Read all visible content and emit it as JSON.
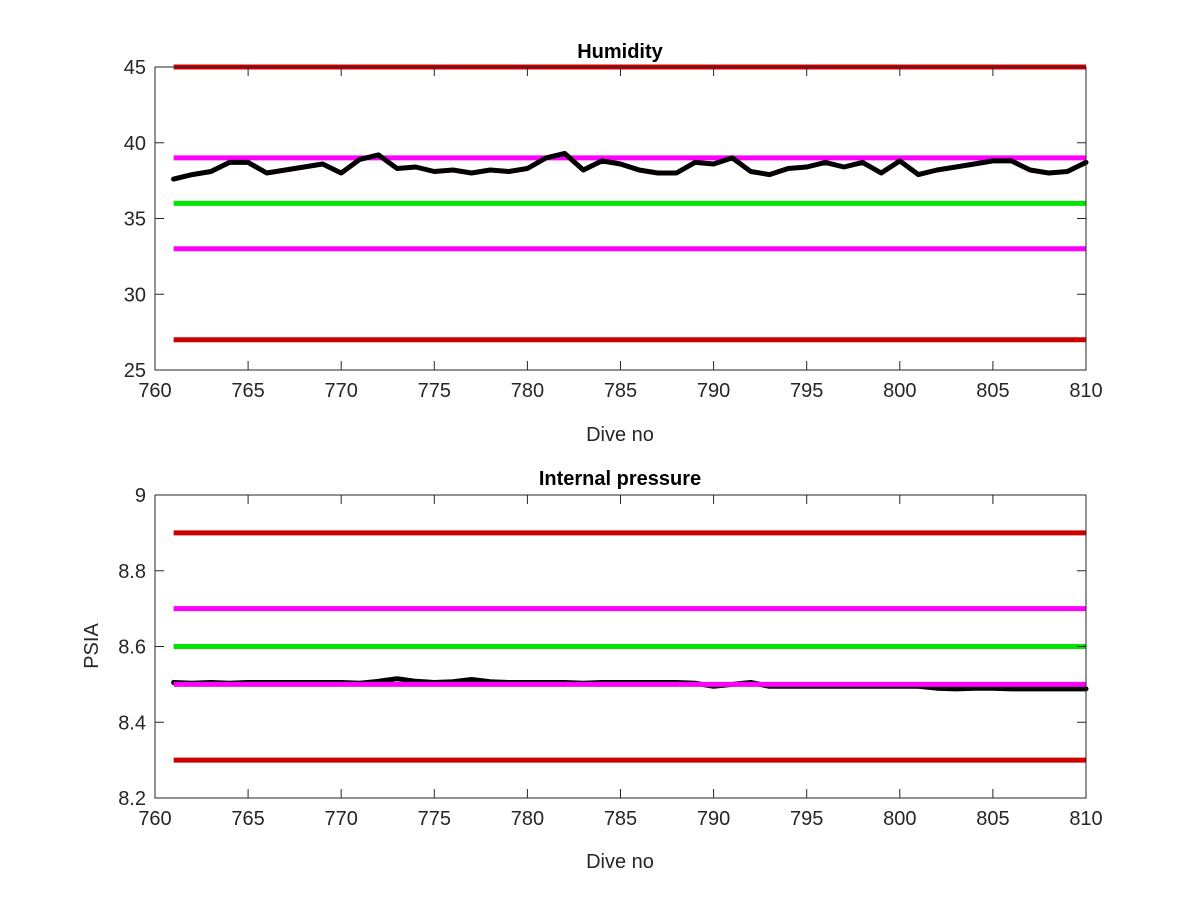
{
  "colors": {
    "red_limit": "#cc0000",
    "magenta_limit": "#ff00ff",
    "green_target": "#00e600",
    "measured": "#000000",
    "axes": "#262626"
  },
  "chart_data": [
    {
      "type": "line",
      "title": "Humidity",
      "xlabel": "Dive no",
      "ylabel": "",
      "xlim": [
        760,
        810
      ],
      "ylim": [
        25,
        45
      ],
      "xticks": [
        760,
        765,
        770,
        775,
        780,
        785,
        790,
        795,
        800,
        805,
        810
      ],
      "yticks": [
        25,
        30,
        35,
        40,
        45
      ],
      "xtick_labels": [
        "760",
        "765",
        "770",
        "775",
        "780",
        "785",
        "790",
        "795",
        "800",
        "805",
        "810"
      ],
      "ytick_labels": [
        "25",
        "30",
        "35",
        "40",
        "45"
      ],
      "grid": false,
      "hlines": [
        {
          "y": 45,
          "color": "red_limit",
          "x": [
            761,
            810
          ]
        },
        {
          "y": 39,
          "color": "magenta_limit",
          "x": [
            761,
            810
          ]
        },
        {
          "y": 36,
          "color": "green_target",
          "x": [
            761,
            810
          ]
        },
        {
          "y": 33,
          "color": "magenta_limit",
          "x": [
            761,
            810
          ]
        },
        {
          "y": 27,
          "color": "red_limit",
          "x": [
            761,
            810
          ]
        }
      ],
      "series": [
        {
          "color": "measured",
          "x": [
            761,
            762,
            763,
            764,
            765,
            766,
            767,
            768,
            769,
            770,
            771,
            772,
            773,
            774,
            775,
            776,
            777,
            778,
            779,
            780,
            781,
            782,
            783,
            784,
            785,
            786,
            787,
            788,
            789,
            790,
            791,
            792,
            793,
            794,
            795,
            796,
            797,
            798,
            799,
            800,
            801,
            802,
            803,
            804,
            805,
            806,
            807,
            808,
            809,
            810
          ],
          "y": [
            37.6,
            37.9,
            38.1,
            38.7,
            38.7,
            38.0,
            38.2,
            38.4,
            38.6,
            38.0,
            38.9,
            39.2,
            38.3,
            38.4,
            38.1,
            38.2,
            38.0,
            38.2,
            38.1,
            38.3,
            39.0,
            39.3,
            38.2,
            38.8,
            38.6,
            38.2,
            38.0,
            38.0,
            38.7,
            38.6,
            39.0,
            38.1,
            37.9,
            38.3,
            38.4,
            38.7,
            38.4,
            38.7,
            38.0,
            38.8,
            37.9,
            38.2,
            38.4,
            38.6,
            38.8,
            38.8,
            38.2,
            38.0,
            38.1,
            38.7
          ]
        }
      ]
    },
    {
      "type": "line",
      "title": "Internal pressure",
      "xlabel": "Dive no",
      "ylabel": "PSIA",
      "xlim": [
        760,
        810
      ],
      "ylim": [
        8.2,
        9
      ],
      "xticks": [
        760,
        765,
        770,
        775,
        780,
        785,
        790,
        795,
        800,
        805,
        810
      ],
      "yticks": [
        8.2,
        8.4,
        8.6,
        8.8,
        9
      ],
      "xtick_labels": [
        "760",
        "765",
        "770",
        "775",
        "780",
        "785",
        "790",
        "795",
        "800",
        "805",
        "810"
      ],
      "ytick_labels": [
        "8.2",
        "8.4",
        "8.6",
        "8.8",
        "9"
      ],
      "grid": false,
      "hlines": [
        {
          "y": 8.9,
          "color": "red_limit",
          "x": [
            761,
            810
          ]
        },
        {
          "y": 8.7,
          "color": "magenta_limit",
          "x": [
            761,
            810
          ]
        },
        {
          "y": 8.6,
          "color": "green_target",
          "x": [
            761,
            810
          ]
        },
        {
          "y": 8.3,
          "color": "red_limit",
          "x": [
            761,
            810
          ]
        }
      ],
      "series": [
        {
          "color": "measured",
          "x": [
            761,
            762,
            763,
            764,
            765,
            766,
            767,
            768,
            769,
            770,
            771,
            772,
            773,
            774,
            775,
            776,
            777,
            778,
            779,
            780,
            781,
            782,
            783,
            784,
            785,
            786,
            787,
            788,
            789,
            790,
            791,
            792,
            793,
            794,
            795,
            796,
            797,
            798,
            799,
            800,
            801,
            802,
            803,
            804,
            805,
            806,
            807,
            808,
            809,
            810
          ],
          "y": [
            8.505,
            8.503,
            8.505,
            8.503,
            8.505,
            8.505,
            8.505,
            8.505,
            8.505,
            8.505,
            8.503,
            8.508,
            8.515,
            8.508,
            8.505,
            8.507,
            8.513,
            8.507,
            8.505,
            8.505,
            8.505,
            8.505,
            8.503,
            8.505,
            8.505,
            8.505,
            8.505,
            8.505,
            8.503,
            8.495,
            8.5,
            8.505,
            8.495,
            8.495,
            8.495,
            8.495,
            8.495,
            8.495,
            8.495,
            8.495,
            8.495,
            8.49,
            8.488,
            8.49,
            8.49,
            8.488,
            8.488,
            8.488,
            8.488,
            8.488
          ]
        }
      ],
      "overlay_hlines": [
        {
          "y": 8.5,
          "color": "magenta_limit",
          "x": [
            761,
            810
          ]
        }
      ]
    }
  ]
}
